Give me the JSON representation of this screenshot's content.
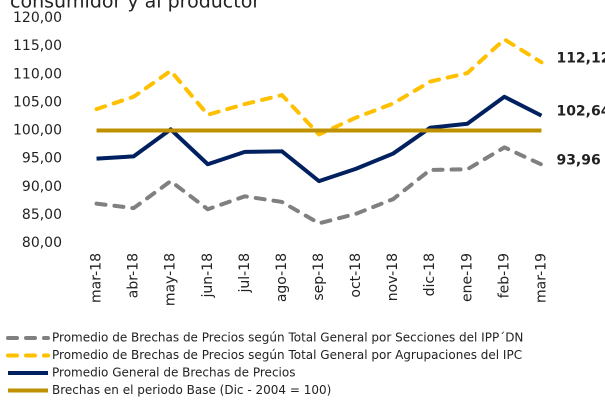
{
  "chart_data": {
    "type": "line",
    "title": "consumidor y al productor",
    "categories": [
      "mar-18",
      "abr-18",
      "may-18",
      "jun-18",
      "jul-18",
      "ago-18",
      "sep-18",
      "oct-18",
      "nov-18",
      "dic-18",
      "ene-19",
      "feb-19",
      "mar-19"
    ],
    "series": [
      {
        "name": "Promedio de Brechas de Precios según Total General por Secciones del IPP´DN",
        "color": "#808080",
        "dashed": true,
        "values": [
          87,
          86.2,
          91,
          86,
          88.3,
          87.3,
          83.5,
          85.2,
          87.8,
          93,
          93.1,
          97,
          93.96
        ],
        "value_labels": [
          null,
          null,
          null,
          null,
          null,
          null,
          null,
          null,
          null,
          null,
          null,
          null,
          "93,96"
        ]
      },
      {
        "name": "Promedio de Brechas de Precios según Total General por Agrupaciones del IPC",
        "color": "#ffc000",
        "dashed": true,
        "values": [
          103.8,
          106,
          110.6,
          102.8,
          104.7,
          106.3,
          99.3,
          102.3,
          104.8,
          108.7,
          110.2,
          116.2,
          112.12
        ],
        "value_labels": [
          null,
          null,
          null,
          null,
          null,
          null,
          null,
          null,
          null,
          null,
          null,
          null,
          "112,12"
        ]
      },
      {
        "name": "Promedio General de Brechas de Precios",
        "color": "#002060",
        "dashed": false,
        "values": [
          95,
          95.4,
          100.2,
          94,
          96.2,
          96.3,
          91,
          93.2,
          95.9,
          100.5,
          101.2,
          106,
          102.64
        ],
        "value_labels": [
          null,
          null,
          null,
          null,
          null,
          null,
          null,
          null,
          null,
          null,
          null,
          null,
          "102,64"
        ]
      },
      {
        "name": "Brechas en el periodo Base (Dic - 2004 = 100)",
        "color": "#bf9000",
        "dashed": false,
        "values": [
          100,
          100,
          100,
          100,
          100,
          100,
          100,
          100,
          100,
          100,
          100,
          100,
          100
        ]
      }
    ],
    "ylim": [
      80,
      120
    ],
    "yticks": [
      {
        "value": 80,
        "label": "80,00"
      },
      {
        "value": 85,
        "label": "85,00"
      },
      {
        "value": 90,
        "label": "90,00"
      },
      {
        "value": 95,
        "label": "95,00"
      },
      {
        "value": 100,
        "label": "100,00"
      },
      {
        "value": 105,
        "label": "105,00"
      },
      {
        "value": 110,
        "label": "110,00"
      },
      {
        "value": 115,
        "label": "115,00"
      },
      {
        "value": 120,
        "label": "120,00"
      }
    ],
    "grid": false,
    "legend": "bottom"
  }
}
